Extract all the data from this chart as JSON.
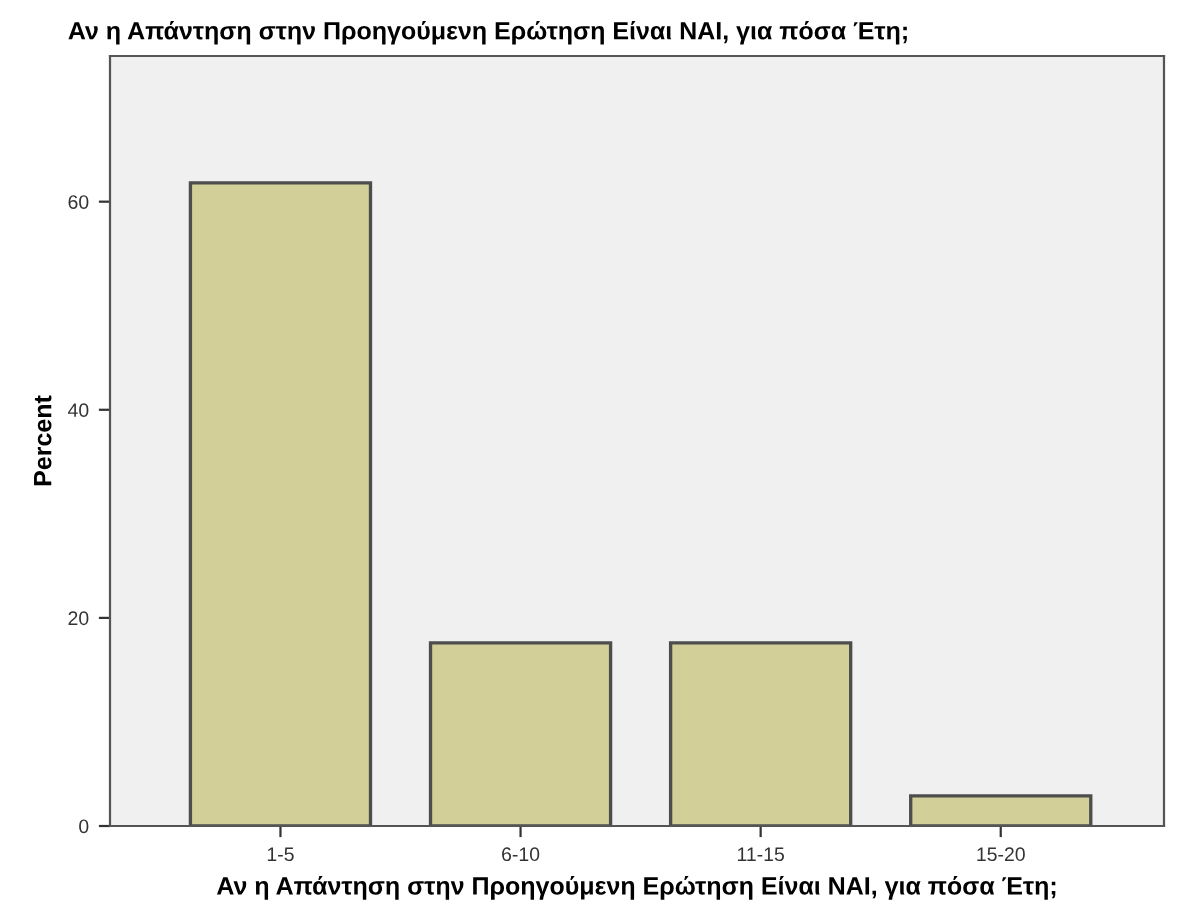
{
  "chart_data": {
    "type": "bar",
    "title": "Αν η Απάντηση στην Προηγούμενη Ερώτηση Είναι ΝΑΙ, για πόσα Έτη;",
    "xlabel": "Αν η Απάντηση στην Προηγούμενη Ερώτηση Είναι ΝΑΙ, για πόσα Έτη;",
    "ylabel": "Percent",
    "categories": [
      "1-5",
      "6-10",
      "11-15",
      "15-20"
    ],
    "values": [
      61.8,
      17.6,
      17.6,
      2.9
    ],
    "color": "#d3cf98",
    "ylim": [
      0,
      74
    ],
    "yticks": [
      0,
      20,
      40,
      60
    ],
    "grid": false
  }
}
